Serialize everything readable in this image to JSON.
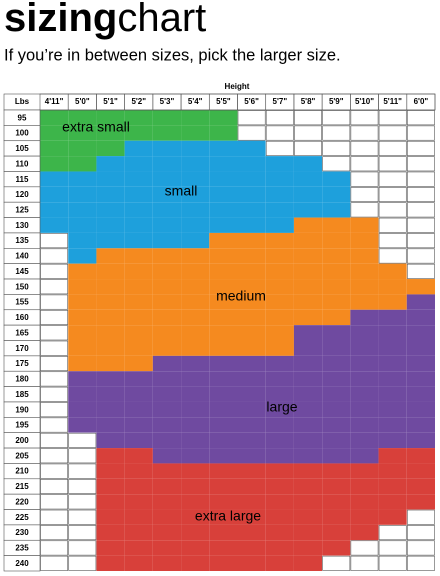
{
  "header": {
    "title_bold": "sizing",
    "title_light": "chart",
    "subtitle": "If you’re in between sizes, pick the larger size."
  },
  "table": {
    "column_group": "Height",
    "row_header": "Lbs",
    "columns": [
      "4'11\"",
      "5'0\"",
      "5'1\"",
      "5'2\"",
      "5'3\"",
      "5'4\"",
      "5'5\"",
      "5'6\"",
      "5'7\"",
      "5'8\"",
      "5'9\"",
      "5'10\"",
      "5'11\"",
      "6'0\""
    ],
    "sizes": [
      {
        "label": "extra small",
        "color": "#3db54a"
      },
      {
        "label": "small",
        "color": "#1ea0dc"
      },
      {
        "label": "medium",
        "color": "#f58a1f"
      },
      {
        "label": "large",
        "color": "#6f4aa0"
      },
      {
        "label": "extra large",
        "color": "#d8403a"
      }
    ],
    "rows": [
      {
        "label": "95",
        "cells": [
          0,
          0,
          0,
          0,
          0,
          0,
          0,
          null,
          null,
          null,
          null,
          null,
          null,
          null
        ]
      },
      {
        "label": "100",
        "cells": [
          0,
          0,
          0,
          0,
          0,
          0,
          0,
          null,
          null,
          null,
          null,
          null,
          null,
          null
        ]
      },
      {
        "label": "105",
        "cells": [
          0,
          0,
          0,
          1,
          1,
          1,
          1,
          1,
          null,
          null,
          null,
          null,
          null,
          null
        ]
      },
      {
        "label": "110",
        "cells": [
          0,
          0,
          1,
          1,
          1,
          1,
          1,
          1,
          1,
          1,
          null,
          null,
          null,
          null
        ]
      },
      {
        "label": "115",
        "cells": [
          1,
          1,
          1,
          1,
          1,
          1,
          1,
          1,
          1,
          1,
          1,
          null,
          null,
          null
        ]
      },
      {
        "label": "120",
        "cells": [
          1,
          1,
          1,
          1,
          1,
          1,
          1,
          1,
          1,
          1,
          1,
          null,
          null,
          null
        ]
      },
      {
        "label": "125",
        "cells": [
          1,
          1,
          1,
          1,
          1,
          1,
          1,
          1,
          1,
          1,
          1,
          null,
          null,
          null
        ]
      },
      {
        "label": "130",
        "cells": [
          1,
          1,
          1,
          1,
          1,
          1,
          1,
          1,
          1,
          2,
          2,
          2,
          null,
          null
        ]
      },
      {
        "label": "135",
        "cells": [
          null,
          1,
          1,
          1,
          1,
          1,
          2,
          2,
          2,
          2,
          2,
          2,
          null,
          null
        ]
      },
      {
        "label": "140",
        "cells": [
          null,
          1,
          2,
          2,
          2,
          2,
          2,
          2,
          2,
          2,
          2,
          2,
          null,
          null
        ]
      },
      {
        "label": "145",
        "cells": [
          null,
          2,
          2,
          2,
          2,
          2,
          2,
          2,
          2,
          2,
          2,
          2,
          2,
          null
        ]
      },
      {
        "label": "150",
        "cells": [
          null,
          2,
          2,
          2,
          2,
          2,
          2,
          2,
          2,
          2,
          2,
          2,
          2,
          2
        ]
      },
      {
        "label": "155",
        "cells": [
          null,
          2,
          2,
          2,
          2,
          2,
          2,
          2,
          2,
          2,
          2,
          2,
          2,
          3
        ]
      },
      {
        "label": "160",
        "cells": [
          null,
          2,
          2,
          2,
          2,
          2,
          2,
          2,
          2,
          2,
          2,
          3,
          3,
          3
        ]
      },
      {
        "label": "165",
        "cells": [
          null,
          2,
          2,
          2,
          2,
          2,
          2,
          2,
          2,
          3,
          3,
          3,
          3,
          3
        ]
      },
      {
        "label": "170",
        "cells": [
          null,
          2,
          2,
          2,
          2,
          2,
          2,
          2,
          2,
          3,
          3,
          3,
          3,
          3
        ]
      },
      {
        "label": "175",
        "cells": [
          null,
          2,
          2,
          2,
          3,
          3,
          3,
          3,
          3,
          3,
          3,
          3,
          3,
          3
        ]
      },
      {
        "label": "180",
        "cells": [
          null,
          3,
          3,
          3,
          3,
          3,
          3,
          3,
          3,
          3,
          3,
          3,
          3,
          3
        ]
      },
      {
        "label": "185",
        "cells": [
          null,
          3,
          3,
          3,
          3,
          3,
          3,
          3,
          3,
          3,
          3,
          3,
          3,
          3
        ]
      },
      {
        "label": "190",
        "cells": [
          null,
          3,
          3,
          3,
          3,
          3,
          3,
          3,
          3,
          3,
          3,
          3,
          3,
          3
        ]
      },
      {
        "label": "195",
        "cells": [
          null,
          3,
          3,
          3,
          3,
          3,
          3,
          3,
          3,
          3,
          3,
          3,
          3,
          3
        ]
      },
      {
        "label": "200",
        "cells": [
          null,
          null,
          3,
          3,
          3,
          3,
          3,
          3,
          3,
          3,
          3,
          3,
          3,
          3
        ]
      },
      {
        "label": "205",
        "cells": [
          null,
          null,
          4,
          4,
          3,
          3,
          3,
          3,
          3,
          3,
          3,
          3,
          4,
          4
        ]
      },
      {
        "label": "210",
        "cells": [
          null,
          null,
          4,
          4,
          4,
          4,
          4,
          4,
          4,
          4,
          4,
          4,
          4,
          4
        ]
      },
      {
        "label": "215",
        "cells": [
          null,
          null,
          4,
          4,
          4,
          4,
          4,
          4,
          4,
          4,
          4,
          4,
          4,
          4
        ]
      },
      {
        "label": "220",
        "cells": [
          null,
          null,
          4,
          4,
          4,
          4,
          4,
          4,
          4,
          4,
          4,
          4,
          4,
          4
        ]
      },
      {
        "label": "225",
        "cells": [
          null,
          null,
          4,
          4,
          4,
          4,
          4,
          4,
          4,
          4,
          4,
          4,
          4,
          null
        ]
      },
      {
        "label": "230",
        "cells": [
          null,
          null,
          4,
          4,
          4,
          4,
          4,
          4,
          4,
          4,
          4,
          4,
          null,
          null
        ]
      },
      {
        "label": "235",
        "cells": [
          null,
          null,
          4,
          4,
          4,
          4,
          4,
          4,
          4,
          4,
          4,
          null,
          null,
          null
        ]
      },
      {
        "label": "240",
        "cells": [
          null,
          null,
          4,
          4,
          4,
          4,
          4,
          4,
          4,
          4,
          null,
          null,
          null,
          null
        ]
      }
    ]
  }
}
